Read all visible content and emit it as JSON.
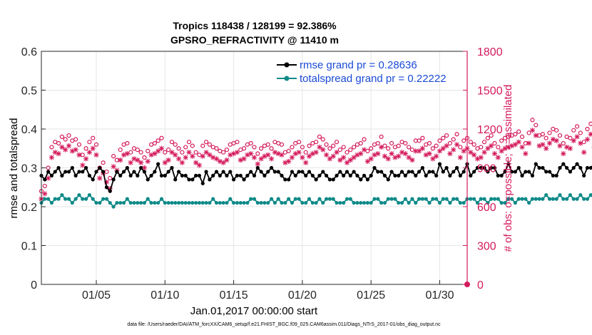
{
  "chart_data": {
    "type": "line",
    "title_line1": "Tropics 118438 / 128199 = 92.386%",
    "title_line2": "GPSRO_REFRACTIVITY @ 11410 m",
    "xlabel": "Jan.01,2017 00:00:00 start",
    "ylabel_left": "rmse and totalspread",
    "ylabel_right": "# of obs: o=possible; ×=assimilated",
    "xlim": [
      1,
      32
    ],
    "xticks": [
      5,
      10,
      15,
      20,
      25,
      30
    ],
    "xtick_labels": [
      "01/05",
      "01/10",
      "01/15",
      "01/20",
      "01/25",
      "01/30"
    ],
    "ylim_left": [
      0,
      0.6
    ],
    "yticks_left": [
      "0",
      "0.1",
      "0.2",
      "0.3",
      "0.4",
      "0.5",
      "0.6"
    ],
    "ylim_right": [
      0,
      1800
    ],
    "yticks_right": [
      "0",
      "300",
      "600",
      "900",
      "1200",
      "1500",
      "1800"
    ],
    "x_step_days": 0.25,
    "x_start_day": 1.0,
    "legend_entries": [
      "rmse grand pr = 0.28636",
      "totalspread grand pr = 0.22222"
    ],
    "footer": "data file: /Users/raeder/DAI/ATM_forcXX/CAM6_setup/f.e21.FHIST_BGC.f09_025.CAM6assim.011/Diags_NTrS_2017-01/obs_diag_output.nc",
    "colors": {
      "rmse": "#000000",
      "spread": "#0e8a88",
      "obs": "#d41a5c",
      "grid": "#e6e6e6"
    },
    "series": [
      {
        "name": "rmse",
        "axis": "left",
        "values": [
          0.28,
          0.27,
          0.29,
          0.28,
          0.29,
          0.3,
          0.28,
          0.29,
          0.29,
          0.3,
          0.28,
          0.29,
          0.29,
          0.3,
          0.28,
          0.27,
          0.29,
          0.3,
          0.29,
          0.25,
          0.24,
          0.27,
          0.29,
          0.28,
          0.29,
          0.3,
          0.28,
          0.29,
          0.28,
          0.3,
          0.29,
          0.27,
          0.28,
          0.29,
          0.31,
          0.28,
          0.28,
          0.29,
          0.3,
          0.27,
          0.29,
          0.28,
          0.28,
          0.27,
          0.27,
          0.28,
          0.28,
          0.26,
          0.29,
          0.27,
          0.28,
          0.29,
          0.28,
          0.29,
          0.28,
          0.29,
          0.27,
          0.28,
          0.28,
          0.27,
          0.28,
          0.29,
          0.28,
          0.3,
          0.29,
          0.28,
          0.29,
          0.3,
          0.29,
          0.29,
          0.28,
          0.27,
          0.27,
          0.29,
          0.28,
          0.29,
          0.29,
          0.28,
          0.29,
          0.28,
          0.27,
          0.28,
          0.29,
          0.28,
          0.27,
          0.27,
          0.28,
          0.29,
          0.28,
          0.29,
          0.28,
          0.29,
          0.28,
          0.27,
          0.28,
          0.27,
          0.28,
          0.3,
          0.29,
          0.29,
          0.28,
          0.27,
          0.29,
          0.28,
          0.28,
          0.29,
          0.28,
          0.29,
          0.29,
          0.28,
          0.29,
          0.3,
          0.28,
          0.29,
          0.29,
          0.28,
          0.31,
          0.29,
          0.3,
          0.28,
          0.29,
          0.3,
          0.28,
          0.29,
          0.31,
          0.28,
          0.29,
          0.3,
          0.3,
          0.3,
          0.29,
          0.3,
          0.3,
          0.28,
          0.28,
          0.29,
          0.31,
          0.29,
          0.29,
          0.3,
          0.28,
          0.29,
          0.29,
          0.28,
          0.31,
          0.3,
          0.3,
          0.29,
          0.29,
          0.28,
          0.28,
          0.3,
          0.31,
          0.3,
          0.29,
          0.3,
          0.31,
          0.3,
          0.28,
          0.3,
          0.3,
          0.31,
          0.3,
          0.31,
          0.29,
          0.28,
          0.29,
          0.28,
          0.3,
          0.29,
          0.28,
          0.29,
          0.29,
          0.3,
          0.29,
          0.28,
          0.29,
          0.3,
          0.29,
          0.29,
          0.3,
          0.28,
          0.29,
          0.3,
          0.29,
          0.3,
          0.3,
          0.29,
          0.3,
          0.29,
          0.3,
          0.31,
          0.3,
          0.29,
          0.3,
          0.29,
          0.29,
          0.3,
          0.3,
          0.29,
          0.29,
          0.3,
          0.29,
          0.29,
          0.3,
          0.29,
          0.3,
          0.29,
          0.3,
          0.3,
          0.29,
          0.3,
          0.29,
          0.3,
          0.29,
          0.29,
          0.3,
          0.3,
          0.29,
          0.3,
          0.29,
          0.29,
          0.3,
          0.29,
          0.3,
          0.3,
          0.29,
          0.3,
          0.3,
          0.29,
          0.3,
          0.29,
          0.3,
          0.3,
          0.29,
          0.3,
          0.3,
          0.29,
          0.3,
          0.29,
          0.29,
          0.3,
          0.3,
          0.29,
          0.28,
          0.29,
          0.3,
          0.29,
          0.29,
          0.28,
          0.29,
          0.29,
          0.29,
          0.28,
          0.27,
          0.28,
          0.29
        ]
      },
      {
        "name": "totalspread",
        "axis": "left",
        "values": [
          0.21,
          0.22,
          0.22,
          0.21,
          0.22,
          0.22,
          0.23,
          0.22,
          0.22,
          0.21,
          0.22,
          0.23,
          0.22,
          0.22,
          0.23,
          0.22,
          0.21,
          0.21,
          0.22,
          0.22,
          0.21,
          0.2,
          0.21,
          0.21,
          0.21,
          0.22,
          0.21,
          0.21,
          0.21,
          0.21,
          0.21,
          0.22,
          0.21,
          0.21,
          0.21,
          0.22,
          0.21,
          0.21,
          0.21,
          0.21,
          0.21,
          0.21,
          0.21,
          0.21,
          0.21,
          0.21,
          0.21,
          0.21,
          0.21,
          0.21,
          0.22,
          0.21,
          0.21,
          0.21,
          0.21,
          0.22,
          0.21,
          0.21,
          0.21,
          0.21,
          0.21,
          0.22,
          0.22,
          0.21,
          0.21,
          0.21,
          0.21,
          0.22,
          0.21,
          0.22,
          0.21,
          0.21,
          0.22,
          0.21,
          0.22,
          0.22,
          0.21,
          0.21,
          0.22,
          0.21,
          0.21,
          0.22,
          0.21,
          0.22,
          0.22,
          0.22,
          0.21,
          0.21,
          0.21,
          0.22,
          0.22,
          0.21,
          0.21,
          0.21,
          0.21,
          0.21,
          0.21,
          0.22,
          0.22,
          0.21,
          0.21,
          0.22,
          0.22,
          0.22,
          0.21,
          0.21,
          0.22,
          0.21,
          0.22,
          0.21,
          0.22,
          0.22,
          0.22,
          0.21,
          0.22,
          0.22,
          0.21,
          0.22,
          0.22,
          0.21,
          0.22,
          0.22,
          0.21,
          0.21,
          0.22,
          0.22,
          0.22,
          0.21,
          0.22,
          0.22,
          0.21,
          0.22,
          0.22,
          0.22,
          0.21,
          0.21,
          0.22,
          0.22,
          0.21,
          0.22,
          0.22,
          0.22,
          0.21,
          0.22,
          0.22,
          0.22,
          0.22,
          0.23,
          0.22,
          0.22,
          0.22,
          0.23,
          0.22,
          0.22,
          0.23,
          0.22,
          0.22,
          0.23,
          0.22,
          0.22,
          0.23,
          0.22,
          0.22,
          0.22,
          0.23,
          0.22,
          0.22,
          0.23,
          0.22,
          0.22,
          0.23,
          0.23,
          0.22,
          0.23,
          0.23,
          0.24,
          0.23,
          0.24,
          0.23,
          0.24,
          0.23,
          0.24,
          0.24,
          0.23,
          0.24,
          0.23,
          0.24,
          0.24,
          0.23,
          0.23,
          0.24,
          0.23,
          0.24,
          0.23,
          0.23,
          0.24,
          0.23,
          0.23,
          0.24,
          0.23,
          0.23,
          0.23,
          0.24,
          0.23,
          0.23,
          0.24,
          0.23,
          0.22,
          0.23,
          0.23,
          0.24,
          0.23,
          0.23,
          0.24,
          0.23,
          0.23,
          0.24,
          0.23,
          0.23,
          0.24,
          0.23,
          0.23,
          0.22,
          0.23,
          0.23,
          0.24,
          0.23,
          0.23,
          0.23,
          0.24,
          0.23,
          0.23,
          0.22,
          0.23,
          0.23,
          0.23,
          0.24,
          0.23,
          0.22,
          0.23,
          0.24,
          0.23,
          0.23,
          0.22,
          0.23,
          0.24,
          0.23,
          0.22,
          0.23,
          0.23,
          0.23,
          0.24,
          0.23,
          0.23,
          0.22,
          0.23,
          0.23
        ]
      },
      {
        "name": "obs_possible",
        "axis": "right",
        "marker": "o",
        "values": [
          720,
          760,
          900,
          1060,
          1100,
          1090,
          1140,
          1120,
          1150,
          1110,
          1120,
          1080,
          1000,
          1050,
          1100,
          1130,
          1080,
          900,
          940,
          870,
          820,
          990,
          960,
          1040,
          1080,
          1090,
          1020,
          1050,
          1040,
          1020,
          980,
          1030,
          1080,
          1090,
          1110,
          1130,
          1020,
          1040,
          1100,
          1080,
          1050,
          1020,
          1060,
          1100,
          1070,
          1020,
          1000,
          1070,
          1100,
          1080,
          1060,
          1050,
          1030,
          1020,
          1040,
          1080,
          1090,
          1100,
          1040,
          1050,
          1080,
          1090,
          1060,
          1010,
          1050,
          1070,
          1080,
          1050,
          1100,
          1090,
          1080,
          1020,
          1030,
          1060,
          1090,
          1100,
          1060,
          1020,
          1070,
          1090,
          1100,
          1140,
          1120,
          1080,
          1050,
          1070,
          1100,
          1040,
          1060,
          1020,
          1040,
          1060,
          1080,
          1090,
          1120,
          1030,
          1050,
          1080,
          1090,
          1140,
          1070,
          1050,
          1090,
          1060,
          1070,
          1100,
          1090,
          1060,
          1040,
          1110,
          1110,
          1130,
          1080,
          1090,
          1050,
          1070,
          1110,
          1130,
          1150,
          1090,
          1120,
          1160,
          1060,
          1110,
          1130,
          1100,
          1080,
          1050,
          1060,
          1100,
          1130,
          1150,
          1090,
          1060,
          1110,
          1130,
          1140,
          1150,
          1160,
          1180,
          1140,
          1090,
          1170,
          1270,
          1230,
          1150,
          1160,
          1130,
          1170,
          1200,
          1190,
          1150,
          1090,
          1140,
          1130,
          1190,
          1220,
          1170,
          1100,
          1200,
          1240,
          1140,
          1100,
          1210,
          1110,
          1050,
          1090,
          1100,
          1000,
          1030,
          1060,
          1120,
          1100,
          1180,
          1130,
          1100,
          1070,
          1060,
          1100,
          1140,
          1180,
          1190,
          1130,
          1110,
          1090,
          1100,
          1150,
          1130,
          1200,
          1180,
          1160,
          1110,
          1050,
          1100,
          1090,
          1080,
          1020,
          1090,
          1110,
          1160,
          1140,
          1170,
          1300,
          1260,
          1240,
          1120,
          1030,
          1100,
          1170,
          1160,
          1200,
          1250,
          1200,
          1180,
          1210,
          1160,
          1080,
          1100,
          1130,
          1100,
          1150,
          1200,
          1300,
          1260,
          1220,
          1290,
          1200,
          1250,
          1200,
          1250,
          1180,
          1120,
          1170,
          1180,
          1140,
          1150,
          1160,
          1120,
          1200,
          1180,
          1240,
          1220,
          1290,
          1300,
          1270,
          1240,
          1250,
          1290,
          1220,
          1180,
          1140,
          1200,
          1250,
          1220
        ]
      },
      {
        "name": "obs_assimilated",
        "axis": "right",
        "marker": "x",
        "values": [
          660,
          700,
          820,
          980,
          1020,
          1010,
          1060,
          1040,
          1070,
          1030,
          1040,
          1000,
          920,
          970,
          1020,
          1050,
          1000,
          820,
          860,
          790,
          740,
          910,
          880,
          960,
          1000,
          1010,
          940,
          970,
          960,
          940,
          900,
          950,
          1000,
          1010,
          1030,
          1050,
          940,
          960,
          1020,
          1000,
          970,
          940,
          980,
          1020,
          990,
          940,
          920,
          990,
          1020,
          1000,
          980,
          970,
          950,
          940,
          960,
          1000,
          1010,
          1020,
          960,
          970,
          1000,
          1010,
          980,
          930,
          970,
          990,
          1000,
          970,
          1020,
          1010,
          1000,
          940,
          950,
          980,
          1010,
          1020,
          980,
          940,
          990,
          1010,
          1020,
          1060,
          1040,
          1000,
          970,
          990,
          1020,
          960,
          980,
          940,
          960,
          980,
          1000,
          1010,
          1040,
          950,
          970,
          1000,
          1010,
          1060,
          990,
          970,
          1010,
          980,
          990,
          1020,
          1010,
          980,
          960,
          1030,
          1030,
          1050,
          1000,
          1010,
          970,
          990,
          1030,
          1050,
          1070,
          1010,
          1040,
          1080,
          980,
          1030,
          1050,
          1020,
          1000,
          970,
          980,
          1020,
          1050,
          1070,
          1010,
          980,
          1030,
          1050,
          1060,
          1070,
          1080,
          1100,
          1060,
          1010,
          1090,
          1190,
          1150,
          1070,
          1080,
          1050,
          1090,
          1120,
          1110,
          1070,
          1010,
          1060,
          1050,
          1110,
          1140,
          1090,
          1020,
          1120,
          1160,
          1060,
          1020,
          1130,
          1030,
          970,
          1010,
          1020,
          920,
          950,
          980,
          1040,
          1020,
          1100,
          1050,
          1020,
          990,
          980,
          1020,
          1060,
          1100,
          1110,
          1050,
          1030,
          1010,
          1020,
          1070,
          1050,
          1120,
          1100,
          1080,
          1030,
          970,
          1020,
          1010,
          1000,
          940,
          1010,
          1030,
          1080,
          1060,
          1090,
          1220,
          1180,
          1160,
          1040,
          950,
          1020,
          1090,
          1080,
          1120,
          1170,
          1120,
          1100,
          1130,
          1080,
          1000,
          1020,
          1050,
          1020,
          1070,
          1120,
          1220,
          1180,
          1140,
          1210,
          1120,
          1170,
          1120,
          1170,
          1100,
          1040,
          1090,
          1100,
          1060,
          1070,
          1080,
          1040,
          1120,
          1100,
          1160,
          1140,
          1210,
          1220,
          1190,
          1160,
          1170,
          1210,
          1140,
          1100,
          1060,
          1120,
          1170,
          1140
        ]
      }
    ]
  }
}
